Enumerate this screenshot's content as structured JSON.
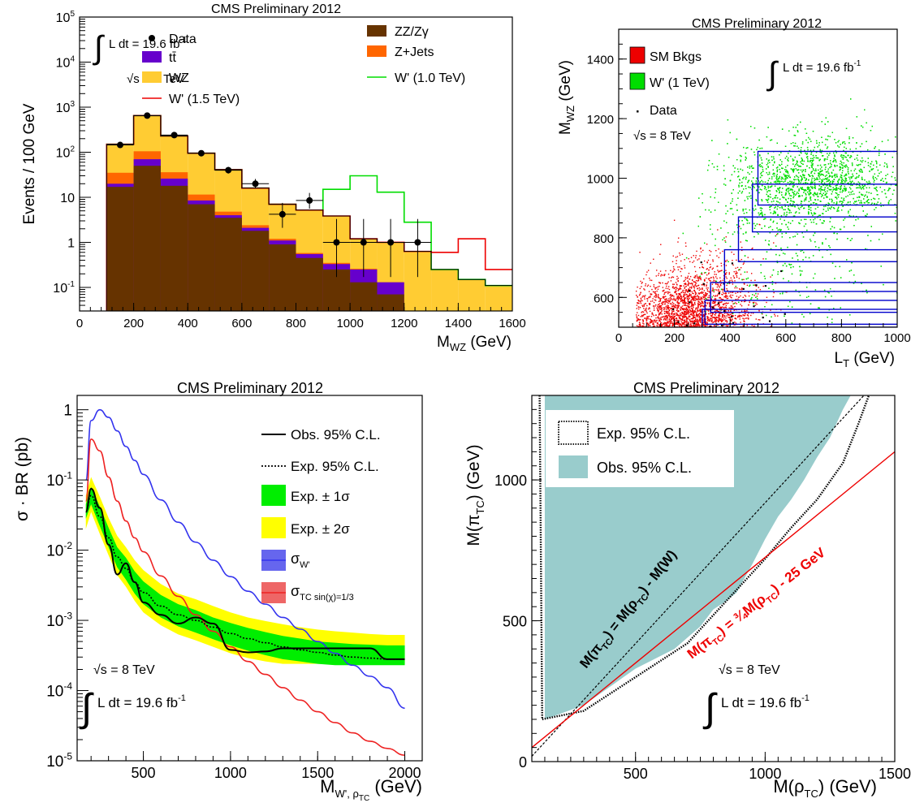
{
  "chart_data": [
    {
      "type": "bar",
      "title": "CMS Preliminary 2012",
      "xlabel": "M_WZ (GeV)",
      "ylabel": "Events / 100 GeV",
      "xlim": [
        0,
        1600
      ],
      "ylim": [
        0.03,
        100000
      ],
      "yscale": "log",
      "lumi_label": "L dt = 19.6 fb",
      "lumi_exp": "-1",
      "sqrt_s_label": "s = 8 TeV",
      "x_ticks": [
        0,
        200,
        400,
        600,
        800,
        1000,
        1200,
        1400,
        1600
      ],
      "y_ticks": [
        {
          "v": 0.1,
          "label": "10",
          "exp": "-1"
        },
        {
          "v": 1,
          "label": "1",
          "exp": ""
        },
        {
          "v": 10,
          "label": "10",
          "exp": ""
        },
        {
          "v": 100,
          "label": "10",
          "exp": "2"
        },
        {
          "v": 1000,
          "label": "10",
          "exp": "3"
        },
        {
          "v": 10000,
          "label": "10",
          "exp": "4"
        },
        {
          "v": 100000,
          "label": "10",
          "exp": "5"
        }
      ],
      "bins": [
        100,
        200,
        300,
        400,
        500,
        600,
        700,
        800,
        900,
        1000,
        1100,
        1200,
        1300,
        1400,
        1500,
        1600
      ],
      "stack": [
        {
          "name": "ZZ/Zγ",
          "color": "#663300",
          "values": [
            17,
            50,
            18,
            7,
            3.5,
            1.8,
            0.9,
            0.45,
            0.25,
            0.13,
            0.07,
            0.03,
            0.03,
            0.03,
            0.03
          ]
        },
        {
          "name": "tt̄",
          "color": "#6600cc",
          "values": [
            3,
            20,
            8,
            1.5,
            0.5,
            0.3,
            0.2,
            0.1,
            0.08,
            0.12,
            0.06,
            0,
            0,
            0,
            0
          ]
        },
        {
          "name": "Z+Jets",
          "color": "#ff6600",
          "values": [
            15,
            35,
            10,
            3,
            0.8,
            0.3,
            0.1,
            0.03,
            0.02,
            0.01,
            0,
            0,
            0,
            0,
            0
          ]
        },
        {
          "name": "WZ",
          "color": "#ffcc33",
          "values": [
            115,
            545,
            193,
            83,
            36,
            13.6,
            5.8,
            4.6,
            3.5,
            0.95,
            0.87,
            0.6,
            0.22,
            0.12,
            0.08
          ]
        }
      ],
      "total_mc": [
        150,
        650,
        230,
        95,
        41,
        16,
        7,
        5.2,
        3.85,
        1.2,
        1.0,
        0.63,
        0.25,
        0.15,
        0.11
      ],
      "wprime_10": {
        "name": "W' (1.0 TeV)",
        "color": "#00dd00",
        "values": [
          150,
          650,
          230,
          95,
          41,
          16,
          7,
          5.2,
          15,
          30,
          13,
          2.8,
          0.25,
          0.15,
          0.11
        ]
      },
      "wprime_15": {
        "name": "W' (1.5 TeV)",
        "color": "#ee0000",
        "values": [
          150,
          650,
          230,
          95,
          41,
          16,
          7,
          5.2,
          3.85,
          1.2,
          1.0,
          0.63,
          0.6,
          1.2,
          0.25
        ]
      },
      "data": {
        "name": "Data",
        "x": [
          150,
          250,
          350,
          450,
          550,
          650,
          750,
          850,
          950,
          1050,
          1150,
          1250
        ],
        "y": [
          145,
          650,
          240,
          95,
          40,
          20,
          4.2,
          8.5,
          1,
          1,
          1,
          1
        ],
        "err_lo": [
          12,
          25,
          15,
          10,
          6.3,
          4.4,
          2.1,
          2.9,
          0.83,
          0.83,
          0.83,
          0.83
        ],
        "err_hi": [
          13,
          27,
          16,
          11,
          7.4,
          5.5,
          3.3,
          4.0,
          2.3,
          2.3,
          2.3,
          2.3
        ]
      },
      "legend_order": [
        "Data",
        "ZZ/Zγ",
        "tt̄",
        "Z+Jets",
        "WZ",
        "W' (1.0 TeV)",
        "W' (1.5 TeV)"
      ]
    },
    {
      "type": "scatter",
      "title": "CMS Preliminary 2012",
      "xlabel": "L_T (GeV)",
      "ylabel": "M_WZ (GeV)",
      "xlim": [
        0,
        1000
      ],
      "ylim": [
        500,
        1500
      ],
      "x_ticks": [
        0,
        200,
        400,
        600,
        800,
        1000
      ],
      "y_ticks": [
        600,
        800,
        1000,
        1200,
        1400
      ],
      "lumi_label": "L dt = 19.6 fb",
      "lumi_exp": "-1",
      "sqrt_s_label": "s = 8 TeV",
      "series": [
        {
          "name": "SM Bkgs",
          "color": "#ee0000",
          "center": [
            200,
            520
          ],
          "spread": [
            120,
            80
          ]
        },
        {
          "name": "W' (1 TeV)",
          "color": "#00dd00",
          "center": [
            700,
            1000
          ],
          "spread": [
            150,
            70
          ]
        },
        {
          "name": "Data",
          "color": "#000000"
        }
      ],
      "windows": [
        {
          "lt_min": 500,
          "m_min": 910,
          "m_max": 1090
        },
        {
          "lt_min": 480,
          "m_min": 820,
          "m_max": 980
        },
        {
          "lt_min": 430,
          "m_min": 720,
          "m_max": 870
        },
        {
          "lt_min": 380,
          "m_min": 620,
          "m_max": 760
        },
        {
          "lt_min": 330,
          "m_min": 550,
          "m_max": 650
        },
        {
          "lt_min": 310,
          "m_min": 510,
          "m_max": 590
        },
        {
          "lt_min": 300,
          "m_min": 500,
          "m_max": 560
        }
      ]
    },
    {
      "type": "line",
      "title": "CMS Preliminary 2012",
      "xlabel": "M_W',ρ_TC (GeV)",
      "ylabel": "σ · BR (pb)",
      "xlim": [
        120,
        2100
      ],
      "ylim": [
        1e-05,
        1.6
      ],
      "yscale": "log",
      "x_ticks": [
        500,
        1000,
        1500,
        2000
      ],
      "y_ticks": [
        {
          "v": 1e-05,
          "label": "10",
          "exp": "-5"
        },
        {
          "v": 0.0001,
          "label": "10",
          "exp": "-4"
        },
        {
          "v": 0.001,
          "label": "10",
          "exp": "-3"
        },
        {
          "v": 0.01,
          "label": "10",
          "exp": "-2"
        },
        {
          "v": 0.1,
          "label": "10",
          "exp": "-1"
        },
        {
          "v": 1,
          "label": "1",
          "exp": ""
        }
      ],
      "sqrt_s_label": "s = 8 TeV",
      "lumi_label": "L dt = 19.6 fb",
      "lumi_exp": "-1",
      "x": [
        170,
        200,
        250,
        300,
        350,
        400,
        450,
        500,
        600,
        700,
        800,
        900,
        1000,
        1100,
        1200,
        1300,
        1400,
        1500,
        1600,
        1700,
        1800,
        1900,
        2000
      ],
      "observed": {
        "name": "Obs. 95% C.L.",
        "values": [
          0.035,
          0.075,
          0.04,
          0.012,
          0.0045,
          0.0065,
          0.0035,
          0.0018,
          0.0012,
          0.0009,
          0.0011,
          0.0009,
          0.00038,
          0.00035,
          0.00036,
          0.0004,
          0.0004,
          0.0004,
          0.0004,
          0.0004,
          0.0004,
          0.00028,
          0.00028
        ]
      },
      "expected": {
        "name": "Exp. 95% C.L.",
        "values": [
          0.035,
          0.06,
          0.03,
          0.015,
          0.008,
          0.0055,
          0.0035,
          0.0025,
          0.0016,
          0.0012,
          0.001,
          0.0008,
          0.00065,
          0.00055,
          0.00048,
          0.00042,
          0.00038,
          0.00035,
          0.00032,
          0.0003,
          0.00029,
          0.00028,
          0.00028
        ]
      },
      "band1": {
        "name": "Exp. ± 1σ",
        "color": "#00ee00",
        "lo": [
          0.028,
          0.045,
          0.022,
          0.011,
          0.0057,
          0.0038,
          0.0024,
          0.0017,
          0.0011,
          0.00082,
          0.00067,
          0.00054,
          0.00044,
          0.00037,
          0.00032,
          0.00028,
          0.00026,
          0.00024,
          0.00023,
          0.00023,
          0.00023,
          0.00023,
          0.00023
        ],
        "hi": [
          0.045,
          0.08,
          0.042,
          0.021,
          0.011,
          0.0078,
          0.005,
          0.0036,
          0.0023,
          0.0017,
          0.0014,
          0.0011,
          0.00092,
          0.00078,
          0.00068,
          0.0006,
          0.00055,
          0.0005,
          0.00048,
          0.00046,
          0.00045,
          0.00044,
          0.00044
        ]
      },
      "band2": {
        "name": "Exp. ± 2σ",
        "color": "#ffff00",
        "lo": [
          0.02,
          0.035,
          0.017,
          0.0085,
          0.0044,
          0.003,
          0.0019,
          0.0013,
          0.00085,
          0.00063,
          0.00052,
          0.00042,
          0.00034,
          0.00029,
          0.00026,
          0.00024,
          0.00024,
          0.00024,
          0.00024,
          0.00024,
          0.00024,
          0.00024,
          0.00024
        ],
        "hi": [
          0.06,
          0.11,
          0.058,
          0.029,
          0.016,
          0.011,
          0.0072,
          0.0052,
          0.0033,
          0.0024,
          0.002,
          0.0016,
          0.0013,
          0.0011,
          0.00098,
          0.00088,
          0.0008,
          0.00074,
          0.0007,
          0.00067,
          0.00064,
          0.00062,
          0.00062
        ]
      },
      "sigma_wprime": {
        "name": "σ_W'",
        "color": "#3333ee",
        "values": [
          0.1,
          0.7,
          1.0,
          0.78,
          0.5,
          0.3,
          0.19,
          0.12,
          0.052,
          0.025,
          0.013,
          0.0072,
          0.0042,
          0.0026,
          0.0017,
          0.0011,
          0.00075,
          0.0005,
          0.00034,
          0.00023,
          0.00016,
          0.00011,
          5.6e-05
        ]
      },
      "sigma_tc": {
        "name": "σ_TC sin(χ)=1/3",
        "color": "#ee2222",
        "values": [
          0.05,
          0.38,
          0.26,
          0.11,
          0.05,
          0.026,
          0.015,
          0.0095,
          0.0043,
          0.0022,
          0.0012,
          0.0007,
          0.00042,
          0.00026,
          0.00017,
          0.00011,
          7.3e-05,
          5e-05,
          3.5e-05,
          2.5e-05,
          1.9e-05,
          1.5e-05,
          1.2e-05
        ]
      }
    },
    {
      "type": "area",
      "title": "CMS Preliminary 2012",
      "xlabel": "M(ρ_TC) (GeV)",
      "ylabel": "M(π_TC) (GeV)",
      "xlim": [
        100,
        1500
      ],
      "ylim": [
        0,
        1300
      ],
      "x_ticks": [
        500,
        1000,
        1500
      ],
      "y_ticks": [
        0,
        500,
        1000
      ],
      "sqrt_s_label": "s = 8 TeV",
      "lumi_label": "L dt = 19.6 fb",
      "lumi_exp": "-1",
      "observed": {
        "name": "Obs. 95% C.L.",
        "color": "#99cccc",
        "boundary": [
          [
            150,
            1300
          ],
          [
            150,
            150
          ],
          [
            300,
            200
          ],
          [
            500,
            330
          ],
          [
            650,
            400
          ],
          [
            750,
            480
          ],
          [
            800,
            540
          ],
          [
            850,
            570
          ],
          [
            890,
            600
          ],
          [
            950,
            700
          ],
          [
            1000,
            790
          ],
          [
            1050,
            870
          ],
          [
            1100,
            930
          ],
          [
            1150,
            1000
          ],
          [
            1200,
            1080
          ],
          [
            1250,
            1150
          ],
          [
            1300,
            1250
          ],
          [
            1330,
            1300
          ]
        ]
      },
      "expected": {
        "name": "Exp. 95% C.L.",
        "boundary": [
          [
            130,
            1300
          ],
          [
            140,
            150
          ],
          [
            300,
            180
          ],
          [
            500,
            300
          ],
          [
            700,
            420
          ],
          [
            800,
            520
          ],
          [
            900,
            620
          ],
          [
            1000,
            720
          ],
          [
            1100,
            830
          ],
          [
            1200,
            930
          ],
          [
            1300,
            1060
          ],
          [
            1360,
            1200
          ],
          [
            1400,
            1300
          ]
        ]
      },
      "line_black": {
        "label": "M(π_TC) = M(ρ_TC) - M(W)",
        "x": [
          100,
          1390
        ],
        "y": [
          19,
          1309
        ]
      },
      "line_red": {
        "label": "M(π_TC) = 3/4 M(ρ_TC) - 25 GeV",
        "color": "#ee0000",
        "x": [
          100,
          1500
        ],
        "y": [
          50,
          1100
        ]
      }
    }
  ]
}
